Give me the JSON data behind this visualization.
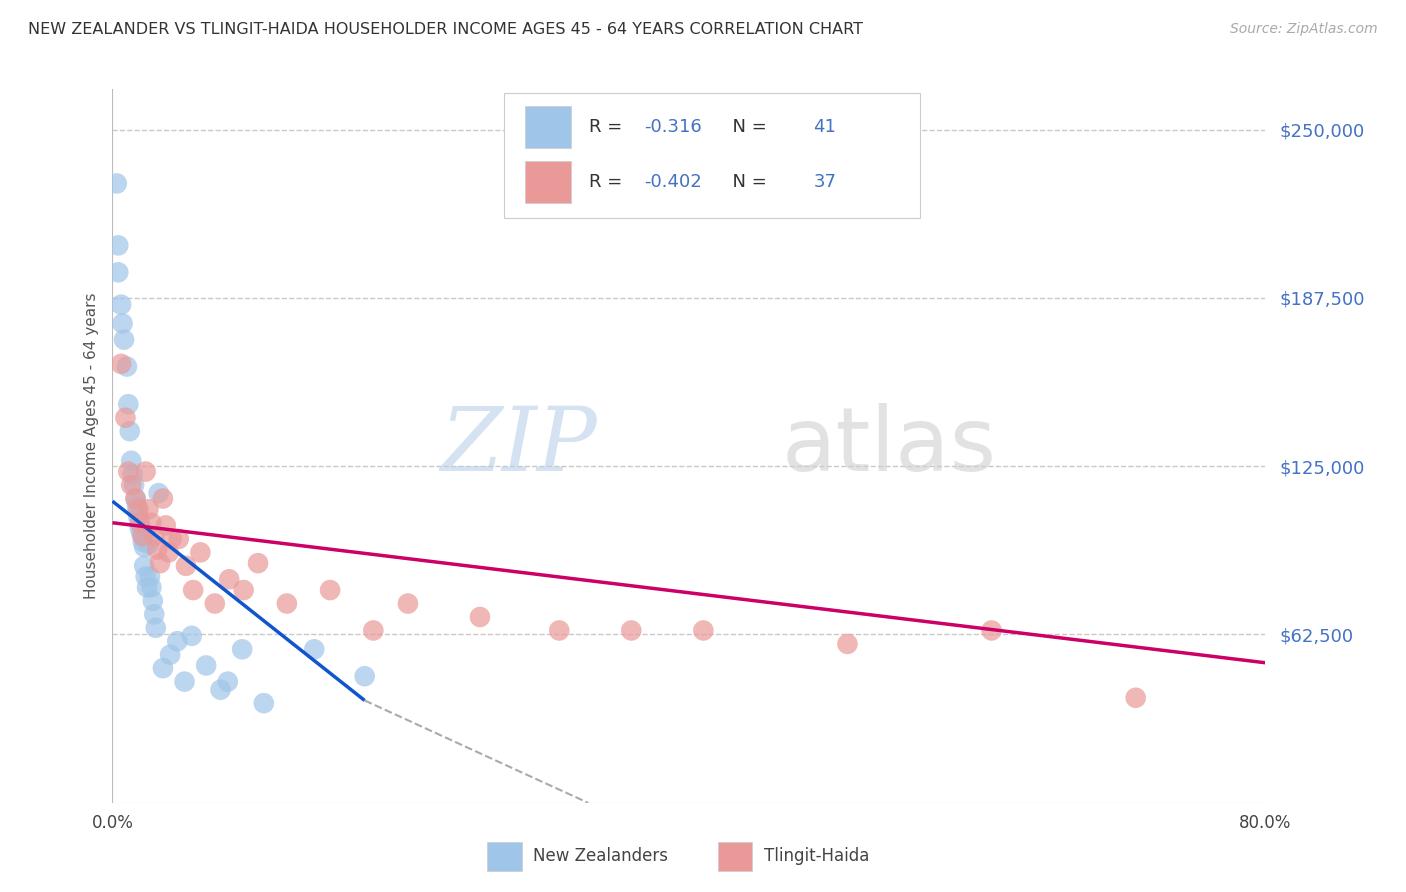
{
  "title": "NEW ZEALANDER VS TLINGIT-HAIDA HOUSEHOLDER INCOME AGES 45 - 64 YEARS CORRELATION CHART",
  "source": "Source: ZipAtlas.com",
  "ylabel": "Householder Income Ages 45 - 64 years",
  "xlim": [
    0.0,
    80.0
  ],
  "ylim": [
    0,
    265000
  ],
  "yticks": [
    0,
    62500,
    125000,
    187500,
    250000
  ],
  "ytick_labels": [
    "",
    "$62,500",
    "$125,000",
    "$187,500",
    "$250,000"
  ],
  "color_nz": "#9fc5e8",
  "color_th": "#ea9999",
  "color_nz_line": "#1155cc",
  "color_th_line": "#cc0066",
  "color_dashed": "#aaaaaa",
  "background_color": "#ffffff",
  "grid_color": "#c8c8c8",
  "nz_x": [
    0.3,
    0.4,
    0.4,
    0.6,
    0.7,
    0.8,
    1.0,
    1.1,
    1.2,
    1.3,
    1.4,
    1.5,
    1.6,
    1.7,
    1.8,
    1.9,
    2.0,
    2.1,
    2.2,
    2.3,
    2.4,
    2.5,
    2.6,
    2.7,
    2.8,
    2.9,
    3.0,
    3.5,
    4.0,
    4.5,
    5.5,
    6.5,
    7.5,
    9.0,
    10.5,
    14.0,
    17.5,
    2.2,
    3.2,
    5.0,
    8.0
  ],
  "nz_y": [
    230000,
    207000,
    197000,
    185000,
    178000,
    172000,
    162000,
    148000,
    138000,
    127000,
    122000,
    118000,
    113000,
    110000,
    106000,
    102000,
    100000,
    97000,
    88000,
    84000,
    80000,
    96000,
    84000,
    80000,
    75000,
    70000,
    65000,
    50000,
    55000,
    60000,
    62000,
    51000,
    42000,
    57000,
    37000,
    57000,
    47000,
    95000,
    115000,
    45000,
    45000
  ],
  "th_x": [
    0.6,
    0.9,
    1.1,
    1.3,
    1.6,
    1.8,
    1.9,
    2.1,
    2.3,
    2.5,
    2.7,
    2.9,
    3.1,
    3.3,
    3.5,
    3.7,
    3.9,
    4.1,
    4.6,
    5.1,
    5.6,
    6.1,
    7.1,
    8.1,
    9.1,
    10.1,
    12.1,
    15.1,
    18.1,
    20.5,
    25.5,
    31.0,
    36.0,
    41.0,
    51.0,
    61.0,
    71.0
  ],
  "th_y": [
    163000,
    143000,
    123000,
    118000,
    113000,
    109000,
    104000,
    99000,
    123000,
    109000,
    104000,
    99000,
    94000,
    89000,
    113000,
    103000,
    93000,
    98000,
    98000,
    88000,
    79000,
    93000,
    74000,
    83000,
    79000,
    89000,
    74000,
    79000,
    64000,
    74000,
    69000,
    64000,
    64000,
    64000,
    59000,
    64000,
    39000
  ],
  "nz_line_x1": 0.0,
  "nz_line_x2": 17.5,
  "nz_line_y1": 112000,
  "nz_line_y2": 38000,
  "th_line_x1": 0.0,
  "th_line_x2": 80.0,
  "th_line_y1": 104000,
  "th_line_y2": 52000,
  "dash_x1": 17.5,
  "dash_x2": 33.0,
  "dash_y1": 38000,
  "dash_y2": 0,
  "legend_nz_r": "-0.316",
  "legend_nz_n": "41",
  "legend_th_r": "-0.402",
  "legend_th_n": "37",
  "legend_label_nz": "New Zealanders",
  "legend_label_th": "Tlingit-Haida",
  "watermark_zip": "ZIP",
  "watermark_atlas": "atlas"
}
